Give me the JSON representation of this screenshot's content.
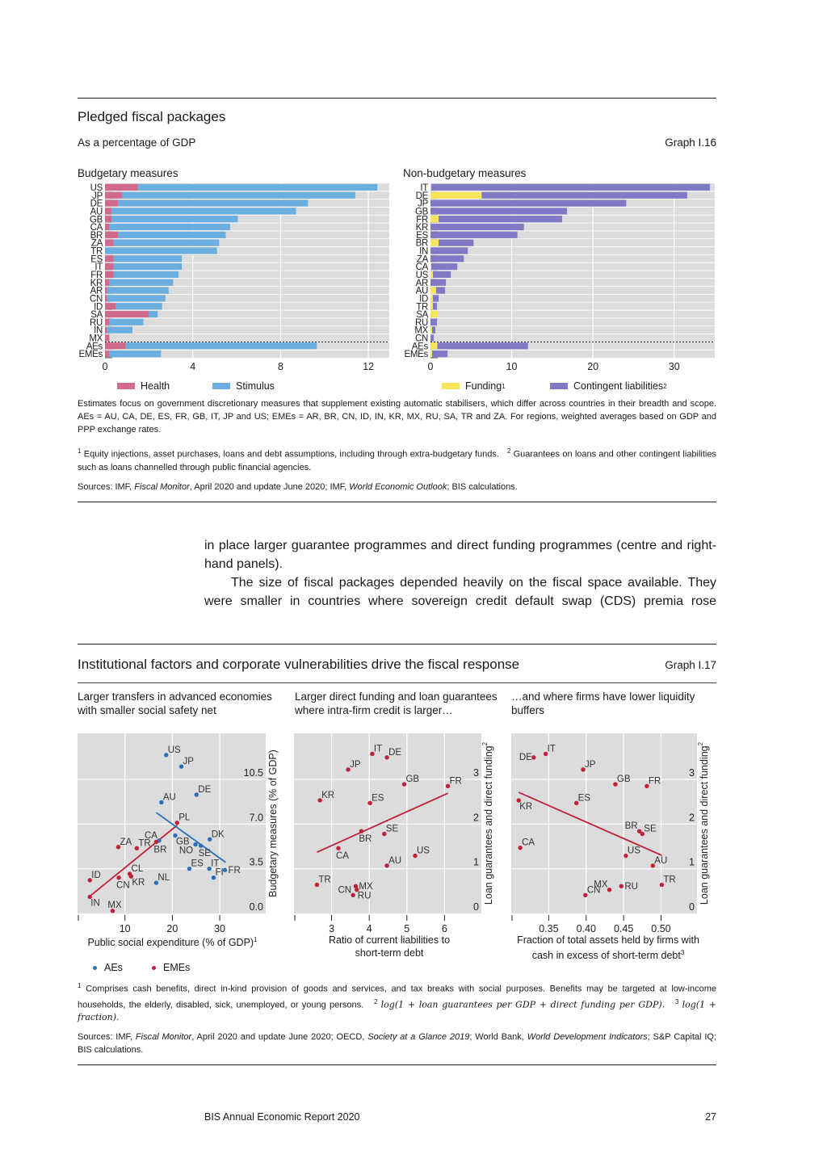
{
  "graph16": {
    "title": "Pledged fiscal packages",
    "subtitle": "As a percentage of GDP",
    "label": "Graph I.16",
    "legend_left": [
      {
        "name": "Health",
        "color": "#cf6a8e"
      },
      {
        "name": "Stimulus",
        "color": "#6aafe0"
      }
    ],
    "legend_right": [
      {
        "name": "Funding",
        "sup": "1",
        "color": "#f7e55a"
      },
      {
        "name": "Contingent liabilities",
        "sup": "2",
        "color": "#8079c5"
      }
    ],
    "note": "Estimates focus on government discretionary measures that supplement existing automatic stabilisers, which differ across countries in their breadth and scope. AEs = AU, CA, DE, ES, FR, GB, IT, JP and US; EMEs = AR, BR, CN, ID, IN, KR, MX, RU, SA, TR and ZA. For regions, weighted averages based on GDP and PPP exchange rates.",
    "footnote1_num": "1",
    "footnote1": "Equity injections, asset purchases, loans and debt assumptions, including through extra-budgetary funds.",
    "footnote2_num": "2",
    "footnote2": "Guarantees on loans and other contingent liabilities such as loans channelled through public financial agencies.",
    "sources": {
      "a": "Sources: IMF, ",
      "b": "Fiscal Monitor",
      "c": ", April 2020 and update June 2020; IMF, ",
      "d": "World Economic Outlook",
      "e": "; BIS calculations."
    }
  },
  "body_text": {
    "p1": "in place larger guarantee programmes and direct funding programmes (centre and right-hand panels).",
    "p2": "The size of fiscal packages depended heavily on the fiscal space available. They were smaller in countries where sovereign credit default swap (CDS) premia rose"
  },
  "graph17": {
    "title": "Institutional factors and corporate vulnerabilities drive the fiscal response",
    "label": "Graph I.17",
    "panel_titles": [
      "Larger transfers in advanced economies with smaller social safety net",
      "Larger direct funding and loan guarantees where intra-firm credit is larger…",
      "…and where firms have lower liquidity buffers"
    ],
    "xlabels": [
      {
        "text": "Public social expenditure (% of GDP)",
        "sup": "1"
      },
      {
        "text": "Ratio of current liabilities to short-term debt",
        "sup": ""
      },
      {
        "text": "Fraction of total assets held by firms with cash in excess of short-term debt",
        "sup": "3"
      }
    ],
    "legend": [
      {
        "name": "AEs",
        "color": "#2a6fba"
      },
      {
        "name": "EMEs",
        "color": "#c0203a"
      }
    ],
    "fn1_num": "1",
    "fn1": "Comprises cash benefits, direct in-kind provision of goods and services, and tax breaks with social purposes. Benefits may be targeted at low-income households, the elderly, disabled, sick, unemployed, or young persons.",
    "fn2_num": "2",
    "fn2": "log(1 + loan guarantees per GDP + direct funding per GDP).",
    "fn3_num": "3",
    "fn3": "log(1 + fraction).",
    "sources": {
      "a": "Sources: IMF, ",
      "b": "Fiscal Monitor",
      "c": ", April 2020 and update June 2020; OECD, ",
      "d": "Society at a Glance 2019",
      "e": "; World Bank, ",
      "f": "World Development Indicators",
      "g": "; S&P Capital IQ; BIS calculations."
    }
  },
  "footer": {
    "publication": "BIS Annual Economic Report 2020",
    "page": "27"
  },
  "chart_data": [
    {
      "type": "bar",
      "orientation": "horizontal",
      "stacked": true,
      "title": "Budgetary measures",
      "categories": [
        "US",
        "JP",
        "DE",
        "AU",
        "GB",
        "CA",
        "BR",
        "ZA",
        "TR",
        "ES",
        "IT",
        "FR",
        "KR",
        "AR",
        "CN",
        "ID",
        "SA",
        "RU",
        "IN",
        "MX",
        "AEs",
        "EMEs"
      ],
      "separator_before": "AEs",
      "series": [
        {
          "name": "Health",
          "color": "#cf6a8e",
          "values": [
            1.5,
            0.8,
            0.6,
            0.3,
            0.3,
            0.2,
            0.6,
            0.4,
            0.0,
            0.4,
            0.4,
            0.4,
            0.2,
            0.1,
            0.1,
            0.5,
            2.0,
            0.2,
            0.1,
            0.2,
            0.95,
            0.2
          ]
        },
        {
          "name": "Stimulus",
          "color": "#6aafe0",
          "values": [
            10.9,
            10.6,
            8.65,
            8.4,
            5.75,
            5.5,
            4.9,
            4.8,
            5.1,
            3.1,
            3.1,
            2.95,
            2.9,
            2.8,
            2.65,
            2.1,
            0.4,
            1.55,
            1.15,
            0.0,
            8.7,
            2.35
          ]
        }
      ],
      "xticks": [
        0,
        4,
        8,
        12
      ],
      "xlim": [
        0,
        12.95
      ],
      "grid": true
    },
    {
      "type": "bar",
      "orientation": "horizontal",
      "stacked": true,
      "title": "Non-budgetary measures",
      "categories": [
        "IT",
        "DE",
        "JP",
        "GB",
        "FR",
        "KR",
        "ES",
        "BR",
        "IN",
        "ZA",
        "CA",
        "US",
        "AR",
        "AU",
        "ID",
        "TR",
        "SA",
        "RU",
        "MX",
        "CN",
        "AEs",
        "EMEs"
      ],
      "separator_before": "AEs",
      "series": [
        {
          "name": "Funding",
          "color": "#f7e55a",
          "values": [
            0.1,
            6.3,
            0,
            0,
            1.0,
            0,
            0,
            1.0,
            0,
            0,
            0.1,
            0.3,
            0,
            0.7,
            0.3,
            0.3,
            0.9,
            0,
            0.2,
            0,
            0.85,
            0.2
          ]
        },
        {
          "name": "Contingent liabilities",
          "color": "#8079c5",
          "values": [
            34.3,
            25.3,
            24.1,
            16.8,
            15.2,
            11.5,
            10.7,
            4.3,
            4.6,
            4.1,
            3.2,
            2.2,
            1.9,
            1.1,
            0.7,
            0.5,
            0.0,
            0.8,
            0.4,
            0.4,
            11.15,
            1.9
          ]
        }
      ],
      "xticks": [
        0,
        10,
        20,
        30
      ],
      "xlim": [
        0,
        35
      ],
      "grid": true
    },
    {
      "type": "scatter",
      "ylabel": "Budgetary measures (% of GDP)",
      "xlim": [
        0,
        39.7
      ],
      "ylim": [
        0,
        14.1
      ],
      "xticks": [
        10,
        20,
        30
      ],
      "yticks": [
        {
          "v": 0,
          "t": "0.0"
        },
        {
          "v": 3.5,
          "t": "3.5"
        },
        {
          "v": 7,
          "t": "7.0"
        },
        {
          "v": 10.5,
          "t": "10.5"
        }
      ],
      "points": [
        {
          "l": "US",
          "x": 18.7,
          "y": 12.4,
          "g": "AE",
          "pos": "ne"
        },
        {
          "l": "JP",
          "x": 21.9,
          "y": 11.5,
          "g": "AE",
          "pos": "ne"
        },
        {
          "l": "DE",
          "x": 25.1,
          "y": 9.3,
          "g": "AE",
          "pos": "ne"
        },
        {
          "l": "AU",
          "x": 17.7,
          "y": 8.7,
          "g": "AE",
          "pos": "ne"
        },
        {
          "l": "PL",
          "x": 21.0,
          "y": 7.1,
          "g": "EME",
          "pos": "ne"
        },
        {
          "l": "GB",
          "x": 20.6,
          "y": 6.1,
          "g": "AE",
          "pos": "se"
        },
        {
          "l": "DK",
          "x": 27.9,
          "y": 5.8,
          "g": "AE",
          "pos": "ne"
        },
        {
          "l": "CA",
          "x": 17.2,
          "y": 5.7,
          "g": "AE",
          "pos": "nw"
        },
        {
          "l": "BR",
          "x": 16.6,
          "y": 5.6,
          "g": "EME",
          "pos": "s"
        },
        {
          "l": "NO",
          "x": 24.9,
          "y": 5.4,
          "g": "AE",
          "pos": "sw"
        },
        {
          "l": "SE",
          "x": 26.0,
          "y": 5.3,
          "g": "AE",
          "pos": "s"
        },
        {
          "l": "ZA",
          "x": 8.6,
          "y": 5.2,
          "g": "EME",
          "pos": "ne"
        },
        {
          "l": "TR",
          "x": 12.5,
          "y": 5.1,
          "g": "EME",
          "pos": "ne"
        },
        {
          "l": "ES",
          "x": 23.6,
          "y": 3.5,
          "g": "AE",
          "pos": "ne"
        },
        {
          "l": "IT",
          "x": 27.8,
          "y": 3.5,
          "g": "AE",
          "pos": "ne"
        },
        {
          "l": "FR",
          "x": 31.1,
          "y": 3.4,
          "g": "AE",
          "pos": "e"
        },
        {
          "l": "CL",
          "x": 11.0,
          "y": 3.1,
          "g": "EME",
          "pos": "ne"
        },
        {
          "l": "KR",
          "x": 11.3,
          "y": 2.9,
          "g": "EME",
          "pos": "se"
        },
        {
          "l": "CN",
          "x": 8.7,
          "y": 2.8,
          "g": "EME",
          "pos": "s"
        },
        {
          "l": "FI",
          "x": 28.7,
          "y": 2.8,
          "g": "AE",
          "pos": "ne"
        },
        {
          "l": "ID",
          "x": 2.6,
          "y": 2.6,
          "g": "EME",
          "pos": "ne"
        },
        {
          "l": "NL",
          "x": 16.6,
          "y": 2.4,
          "g": "AE",
          "pos": "ne"
        },
        {
          "l": "IN",
          "x": 2.6,
          "y": 1.3,
          "g": "EME",
          "pos": "se"
        },
        {
          "l": "MX",
          "x": 7.4,
          "y": 0.2,
          "g": "EME",
          "pos": "n"
        }
      ],
      "fit_lines": [
        {
          "group": "EME",
          "from": [
            2.6,
            1.35
          ],
          "to": [
            21.0,
            6.9
          ]
        },
        {
          "group": "AE",
          "from": [
            16.6,
            7.9
          ],
          "to": [
            31.25,
            4.0
          ]
        }
      ]
    },
    {
      "type": "scatter",
      "ylabel": "Loan guarantees and direct funding",
      "ylabel_sup": "2",
      "xlim": [
        2.0,
        6.98
      ],
      "ylim": [
        0,
        4.03
      ],
      "xticks": [
        3,
        4,
        5,
        6
      ],
      "yticks": [
        {
          "v": 0,
          "t": "0"
        },
        {
          "v": 1,
          "t": "1"
        },
        {
          "v": 2,
          "t": "2"
        },
        {
          "v": 3,
          "t": "3"
        }
      ],
      "points": [
        {
          "l": "IT",
          "x": 4.08,
          "y": 3.57,
          "g": "EME",
          "pos": "ne"
        },
        {
          "l": "DE",
          "x": 4.47,
          "y": 3.49,
          "g": "EME",
          "pos": "ne"
        },
        {
          "l": "JP",
          "x": 3.44,
          "y": 3.22,
          "g": "EME",
          "pos": "ne"
        },
        {
          "l": "GB",
          "x": 4.93,
          "y": 2.89,
          "g": "EME",
          "pos": "ne"
        },
        {
          "l": "FR",
          "x": 6.09,
          "y": 2.85,
          "g": "EME",
          "pos": "ne"
        },
        {
          "l": "KR",
          "x": 2.69,
          "y": 2.53,
          "g": "EME",
          "pos": "ne"
        },
        {
          "l": "ES",
          "x": 4.02,
          "y": 2.47,
          "g": "EME",
          "pos": "ne"
        },
        {
          "l": "BR",
          "x": 3.79,
          "y": 1.84,
          "g": "EME",
          "pos": "s"
        },
        {
          "l": "SE",
          "x": 4.4,
          "y": 1.78,
          "g": "EME",
          "pos": "ne"
        },
        {
          "l": "CA",
          "x": 3.18,
          "y": 1.46,
          "g": "EME",
          "pos": "s"
        },
        {
          "l": "US",
          "x": 5.22,
          "y": 1.29,
          "g": "EME",
          "pos": "ne"
        },
        {
          "l": "AU",
          "x": 4.47,
          "y": 1.07,
          "g": "EME",
          "pos": "ne"
        },
        {
          "l": "TR",
          "x": 2.61,
          "y": 0.64,
          "g": "EME",
          "pos": "ne"
        },
        {
          "l": "MX",
          "x": 3.64,
          "y": 0.61,
          "g": "EME",
          "pos": "e"
        },
        {
          "l": "RU",
          "x": 3.67,
          "y": 0.53,
          "g": "EME",
          "pos": "se"
        },
        {
          "l": "CN",
          "x": 3.57,
          "y": 0.41,
          "g": "EME",
          "pos": "nw"
        }
      ],
      "fit_lines": [
        {
          "group": "EME",
          "from": [
            2.61,
            1.37
          ],
          "to": [
            6.09,
            2.69
          ]
        }
      ]
    },
    {
      "type": "scatter",
      "ylabel": "Loan guarantees and direct funding",
      "ylabel_sup": "2",
      "xlim": [
        0.3,
        0.548
      ],
      "ylim": [
        0,
        4.03
      ],
      "xticks": [
        0.35,
        0.4,
        0.45,
        0.5
      ],
      "xtick_labels": [
        "0.35",
        "0.40",
        "0.45",
        "0.50"
      ],
      "yticks": [
        {
          "v": 0,
          "t": "0"
        },
        {
          "v": 1,
          "t": "1"
        },
        {
          "v": 2,
          "t": "2"
        },
        {
          "v": 3,
          "t": "3"
        }
      ],
      "points": [
        {
          "l": "DE",
          "x": 0.33,
          "y": 3.49,
          "g": "EME",
          "pos": "w"
        },
        {
          "l": "IT",
          "x": 0.346,
          "y": 3.57,
          "g": "EME",
          "pos": "ne"
        },
        {
          "l": "JP",
          "x": 0.396,
          "y": 3.22,
          "g": "EME",
          "pos": "ne"
        },
        {
          "l": "GB",
          "x": 0.439,
          "y": 2.89,
          "g": "EME",
          "pos": "ne"
        },
        {
          "l": "FR",
          "x": 0.481,
          "y": 2.85,
          "g": "EME",
          "pos": "ne"
        },
        {
          "l": "KR",
          "x": 0.31,
          "y": 2.53,
          "g": "EME",
          "pos": "se"
        },
        {
          "l": "ES",
          "x": 0.387,
          "y": 2.47,
          "g": "EME",
          "pos": "ne"
        },
        {
          "l": "BR",
          "x": 0.471,
          "y": 1.84,
          "g": "EME",
          "pos": "nw"
        },
        {
          "l": "SE",
          "x": 0.475,
          "y": 1.78,
          "g": "EME",
          "pos": "ne"
        },
        {
          "l": "CA",
          "x": 0.312,
          "y": 1.47,
          "g": "EME",
          "pos": "ne"
        },
        {
          "l": "US",
          "x": 0.453,
          "y": 1.29,
          "g": "EME",
          "pos": "ne"
        },
        {
          "l": "AU",
          "x": 0.489,
          "y": 1.07,
          "g": "EME",
          "pos": "ne"
        },
        {
          "l": "TR",
          "x": 0.501,
          "y": 0.64,
          "g": "EME",
          "pos": "ne"
        },
        {
          "l": "RU",
          "x": 0.447,
          "y": 0.61,
          "g": "EME",
          "pos": "e"
        },
        {
          "l": "MX",
          "x": 0.431,
          "y": 0.53,
          "g": "EME",
          "pos": "nw"
        },
        {
          "l": "CN",
          "x": 0.399,
          "y": 0.41,
          "g": "EME",
          "pos": "ne"
        }
      ],
      "fit_lines": [
        {
          "group": "EME",
          "from": [
            0.31,
            2.71
          ],
          "to": [
            0.501,
            1.3
          ]
        }
      ]
    }
  ],
  "colors": {
    "AE": "#2a6fba",
    "EME": "#c0203a",
    "plot_bg": "#dcdcdc"
  }
}
